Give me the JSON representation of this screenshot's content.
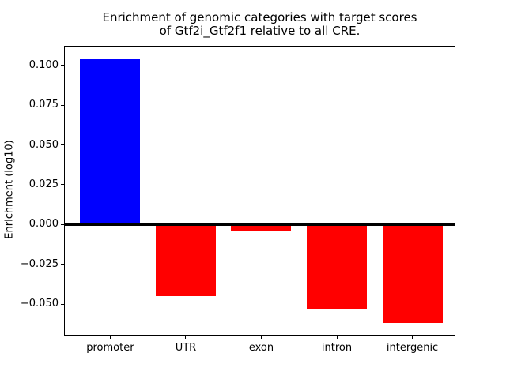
{
  "figure": {
    "title": "Enrichment of genomic categories with target scores\nof Gtf2i_Gtf2f1 relative to all CRE."
  },
  "chart_data": {
    "type": "bar",
    "title": "Enrichment of genomic categories with target scores of Gtf2i_Gtf2f1 relative to all CRE.",
    "xlabel": "",
    "ylabel": "Enrichment (log10)",
    "categories": [
      "promoter",
      "UTR",
      "exon",
      "intron",
      "intergenic"
    ],
    "values": [
      0.104,
      -0.045,
      -0.004,
      -0.053,
      -0.062
    ],
    "bar_colors": [
      "#0000ff",
      "#ff0000",
      "#ff0000",
      "#ff0000",
      "#ff0000"
    ],
    "positive_color": "#0000ff",
    "negative_color": "#ff0000",
    "ylim": [
      -0.0698,
      0.1123
    ],
    "yticks": [
      {
        "value": 0.1,
        "label": "0.100"
      },
      {
        "value": 0.075,
        "label": "0.075"
      },
      {
        "value": 0.05,
        "label": "0.050"
      },
      {
        "value": 0.025,
        "label": "0.025"
      },
      {
        "value": 0.0,
        "label": "0.000"
      },
      {
        "value": -0.025,
        "label": "−0.025"
      },
      {
        "value": -0.05,
        "label": "−0.050"
      }
    ],
    "zero_line": {
      "show": true,
      "color": "#000000",
      "thickness_px": 3
    },
    "grid": false,
    "legend": false,
    "background": "#ffffff"
  }
}
